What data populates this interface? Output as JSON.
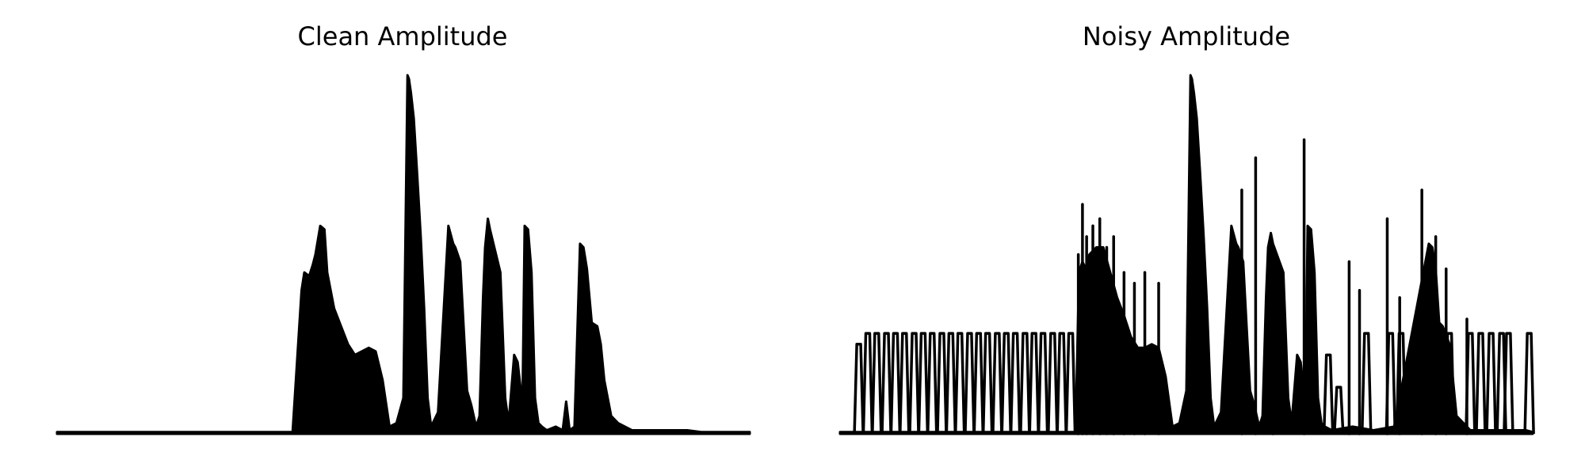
{
  "figure": {
    "background": "#ffffff",
    "line_color": "#000000"
  },
  "chart_data": [
    {
      "type": "line",
      "title": "Clean Amplitude",
      "axes_visible": false,
      "grid": false,
      "legend": "none",
      "ylim": [
        0,
        1
      ],
      "x": [
        0.0,
        0.34,
        0.353,
        0.357,
        0.364,
        0.369,
        0.373,
        0.38,
        0.386,
        0.39,
        0.4,
        0.41,
        0.42,
        0.43,
        0.44,
        0.45,
        0.46,
        0.47,
        0.48,
        0.49,
        0.5,
        0.506,
        0.508,
        0.511,
        0.515,
        0.52,
        0.525,
        0.53,
        0.535,
        0.54,
        0.55,
        0.565,
        0.572,
        0.575,
        0.582,
        0.587,
        0.592,
        0.598,
        0.605,
        0.61,
        0.615,
        0.618,
        0.622,
        0.625,
        0.64,
        0.647,
        0.652,
        0.66,
        0.665,
        0.672,
        0.675,
        0.68,
        0.685,
        0.69,
        0.695,
        0.7,
        0.707,
        0.72,
        0.73,
        0.735,
        0.74,
        0.747,
        0.755,
        0.76,
        0.765,
        0.772,
        0.78,
        0.785,
        0.79,
        0.8,
        0.81,
        0.83,
        0.83,
        0.833,
        0.836,
        0.845,
        0.85,
        0.855,
        0.86,
        0.865,
        0.87,
        0.876,
        0.88,
        0.885,
        0.89,
        0.895,
        0.9,
        0.91,
        0.93,
        1.0
      ],
      "y": [
        0.005,
        0.005,
        0.4,
        0.45,
        0.44,
        0.47,
        0.5,
        0.58,
        0.57,
        0.45,
        0.35,
        0.3,
        0.25,
        0.22,
        0.23,
        0.24,
        0.23,
        0.15,
        0.02,
        0.03,
        0.1,
        1.0,
        0.99,
        0.95,
        0.88,
        0.72,
        0.55,
        0.35,
        0.1,
        0.02,
        0.06,
        0.58,
        0.53,
        0.52,
        0.48,
        0.3,
        0.12,
        0.08,
        0.02,
        0.05,
        0.38,
        0.52,
        0.6,
        0.57,
        0.45,
        0.1,
        0.03,
        0.22,
        0.2,
        0.08,
        0.58,
        0.57,
        0.45,
        0.1,
        0.03,
        0.02,
        0.01,
        0.02,
        0.01,
        0.09,
        0.01,
        0.02,
        0.53,
        0.52,
        0.46,
        0.31,
        0.3,
        0.25,
        0.15,
        0.05,
        0.03,
        0.01,
        0.01,
        0.01,
        0.01,
        0.01,
        0.01,
        0.01,
        0.01,
        0.01,
        0.01,
        0.01,
        0.01,
        0.01,
        0.01,
        0.01,
        0.01,
        0.01,
        0.005,
        0.005
      ]
    },
    {
      "type": "line",
      "title": "Noisy Amplitude",
      "axes_visible": false,
      "grid": false,
      "legend": "none",
      "ylim": [
        0,
        1
      ],
      "noise_pulses": {
        "x": [
          0.027,
          0.04,
          0.053,
          0.067,
          0.08,
          0.093,
          0.107,
          0.12,
          0.133,
          0.147,
          0.16,
          0.173,
          0.187,
          0.2,
          0.213,
          0.227,
          0.24,
          0.253,
          0.267,
          0.28,
          0.293,
          0.307,
          0.32,
          0.333,
          0.705,
          0.72,
          0.76,
          0.795,
          0.81,
          0.85,
          0.88,
          0.91,
          0.925,
          0.94,
          0.955,
          0.965,
          0.995
        ],
        "y": [
          0.25,
          0.28,
          0.28,
          0.28,
          0.28,
          0.28,
          0.28,
          0.28,
          0.28,
          0.28,
          0.28,
          0.28,
          0.28,
          0.28,
          0.28,
          0.28,
          0.28,
          0.28,
          0.28,
          0.28,
          0.28,
          0.28,
          0.28,
          0.28,
          0.22,
          0.13,
          0.28,
          0.28,
          0.28,
          0.28,
          0.28,
          0.28,
          0.28,
          0.28,
          0.28,
          0.28,
          0.28
        ]
      },
      "spikes": {
        "x": [
          0.344,
          0.35,
          0.356,
          0.365,
          0.375,
          0.385,
          0.395,
          0.41,
          0.425,
          0.44,
          0.46,
          0.58,
          0.6,
          0.625,
          0.67,
          0.735,
          0.75,
          0.79,
          0.808,
          0.84,
          0.86,
          0.875,
          0.905
        ],
        "y": [
          0.5,
          0.64,
          0.55,
          0.58,
          0.6,
          0.52,
          0.55,
          0.45,
          0.42,
          0.45,
          0.42,
          0.68,
          0.77,
          0.43,
          0.82,
          0.48,
          0.4,
          0.6,
          0.38,
          0.68,
          0.55,
          0.46,
          0.32
        ]
      },
      "envelope_x": [
        0.0,
        0.02,
        0.34,
        0.345,
        0.35,
        0.355,
        0.36,
        0.37,
        0.38,
        0.39,
        0.4,
        0.41,
        0.42,
        0.43,
        0.44,
        0.45,
        0.46,
        0.47,
        0.48,
        0.49,
        0.5,
        0.506,
        0.508,
        0.511,
        0.515,
        0.52,
        0.525,
        0.53,
        0.535,
        0.54,
        0.55,
        0.565,
        0.572,
        0.575,
        0.582,
        0.587,
        0.592,
        0.598,
        0.605,
        0.61,
        0.615,
        0.618,
        0.622,
        0.625,
        0.64,
        0.647,
        0.652,
        0.66,
        0.665,
        0.672,
        0.675,
        0.68,
        0.685,
        0.69,
        0.695,
        0.7,
        0.71,
        0.74,
        0.77,
        0.8,
        0.85,
        0.855,
        0.86,
        0.865,
        0.87,
        0.88,
        0.885,
        0.89,
        0.9,
        0.91,
        0.93,
        0.96,
        0.99,
        1.0
      ],
      "envelope_y": [
        0.005,
        0.005,
        0.005,
        0.45,
        0.48,
        0.46,
        0.5,
        0.52,
        0.52,
        0.45,
        0.38,
        0.33,
        0.27,
        0.24,
        0.24,
        0.25,
        0.24,
        0.16,
        0.02,
        0.03,
        0.12,
        1.0,
        0.99,
        0.95,
        0.88,
        0.72,
        0.55,
        0.35,
        0.1,
        0.02,
        0.06,
        0.58,
        0.53,
        0.52,
        0.48,
        0.3,
        0.12,
        0.08,
        0.02,
        0.05,
        0.38,
        0.52,
        0.56,
        0.53,
        0.45,
        0.1,
        0.03,
        0.22,
        0.2,
        0.08,
        0.58,
        0.57,
        0.45,
        0.1,
        0.03,
        0.02,
        0.01,
        0.02,
        0.01,
        0.02,
        0.53,
        0.52,
        0.46,
        0.31,
        0.3,
        0.25,
        0.15,
        0.05,
        0.03,
        0.01,
        0.01,
        0.01,
        0.01,
        0.005
      ]
    }
  ]
}
